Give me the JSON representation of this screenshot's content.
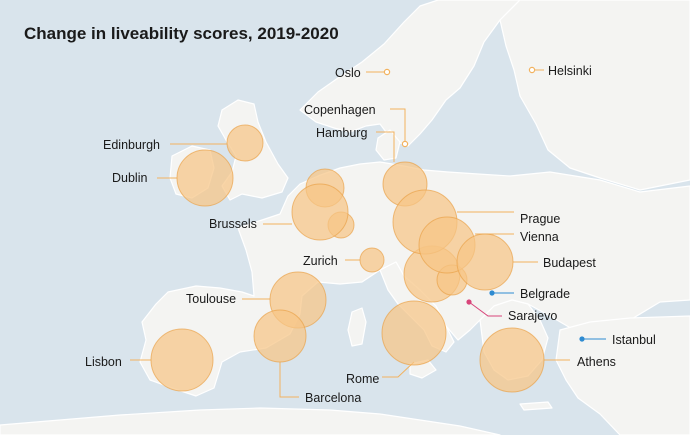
{
  "title": "Change in liveability scores, 2019-2020",
  "colors": {
    "sea": "#d9e4ec",
    "land": "#f4f4f2",
    "border": "#ffffff",
    "increase_fill": "#f6c585",
    "increase_stroke": "#eaa24a",
    "leader_orange": "#f2b25f",
    "leader_blue": "#2e8bd1",
    "leader_pink": "#d8457a"
  },
  "cities": [
    {
      "name": "Oslo",
      "magnitude": "small",
      "color": "orange"
    },
    {
      "name": "Helsinki",
      "magnitude": "small",
      "color": "orange"
    },
    {
      "name": "Copenhagen",
      "magnitude": "small",
      "color": "orange"
    },
    {
      "name": "Hamburg",
      "magnitude": "large",
      "color": "orange"
    },
    {
      "name": "Edinburgh",
      "magnitude": "medium",
      "color": "orange"
    },
    {
      "name": "Dublin",
      "magnitude": "large",
      "color": "orange"
    },
    {
      "name": "Brussels",
      "magnitude": "large",
      "color": "orange"
    },
    {
      "name": "Prague",
      "magnitude": "very-large",
      "color": "orange"
    },
    {
      "name": "Vienna",
      "magnitude": "large",
      "color": "orange"
    },
    {
      "name": "Zurich",
      "magnitude": "small",
      "color": "orange"
    },
    {
      "name": "Budapest",
      "magnitude": "large",
      "color": "orange"
    },
    {
      "name": "Toulouse",
      "magnitude": "large",
      "color": "orange"
    },
    {
      "name": "Belgrade",
      "magnitude": "none",
      "color": "blue"
    },
    {
      "name": "Sarajevo",
      "magnitude": "none",
      "color": "pink"
    },
    {
      "name": "Istanbul",
      "magnitude": "none",
      "color": "blue"
    },
    {
      "name": "Lisbon",
      "magnitude": "very-large",
      "color": "orange"
    },
    {
      "name": "Rome",
      "magnitude": "very-large",
      "color": "orange"
    },
    {
      "name": "Athens",
      "magnitude": "very-large",
      "color": "orange"
    },
    {
      "name": "Barcelona",
      "magnitude": "large",
      "color": "orange"
    }
  ]
}
